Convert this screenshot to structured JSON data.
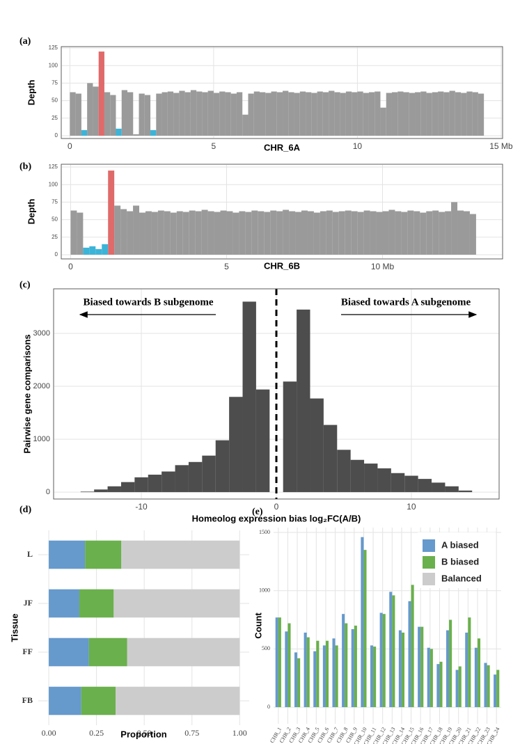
{
  "chart_data": [
    {
      "type": "bar",
      "label": "(a)",
      "x_label": "CHR_6A",
      "y_label": "Depth",
      "xlim": [
        -0.3,
        15.05
      ],
      "xticks": [
        0,
        5,
        10,
        {
          "value": 15,
          "label": "15 Mb"
        }
      ],
      "ylim": [
        -4,
        127
      ],
      "yticks": [
        0,
        25,
        50,
        75,
        100,
        125
      ],
      "grid": true,
      "x": [
        0.1,
        0.3,
        0.5,
        0.7,
        0.9,
        1.1,
        1.3,
        1.5,
        1.7,
        1.9,
        2.1,
        2.3,
        2.5,
        2.7,
        2.9,
        3.1,
        3.3,
        3.5,
        3.7,
        3.9,
        4.1,
        4.3,
        4.5,
        4.7,
        4.9,
        5.1,
        5.3,
        5.5,
        5.7,
        5.9,
        6.1,
        6.3,
        6.5,
        6.7,
        6.9,
        7.1,
        7.3,
        7.5,
        7.7,
        7.9,
        8.1,
        8.3,
        8.5,
        8.7,
        8.9,
        9.1,
        9.3,
        9.5,
        9.7,
        9.9,
        10.1,
        10.3,
        10.5,
        10.7,
        10.9,
        11.1,
        11.3,
        11.5,
        11.7,
        11.9,
        12.1,
        12.3,
        12.5,
        12.7,
        12.9,
        13.1,
        13.3,
        13.5,
        13.7,
        13.9,
        14.1,
        14.3
      ],
      "values": [
        62,
        60,
        8,
        75,
        70,
        120,
        62,
        58,
        10,
        65,
        62,
        2,
        60,
        58,
        8,
        60,
        62,
        63,
        61,
        64,
        62,
        65,
        63,
        62,
        64,
        61,
        63,
        62,
        60,
        62,
        30,
        60,
        63,
        62,
        61,
        63,
        62,
        64,
        62,
        61,
        63,
        62,
        61,
        63,
        62,
        64,
        62,
        61,
        63,
        62,
        63,
        61,
        62,
        63,
        40,
        61,
        62,
        63,
        62,
        61,
        62,
        63,
        61,
        62,
        63,
        62,
        64,
        62,
        61,
        63,
        62,
        60
      ],
      "colors": [
        "#9a9a9a",
        "#9a9a9a",
        "#3cb4d8",
        "#9a9a9a",
        "#9a9a9a",
        "#e06a6a",
        "#9a9a9a",
        "#9a9a9a",
        "#3cb4d8",
        "#9a9a9a",
        "#9a9a9a",
        "#9a9a9a",
        "#9a9a9a",
        "#9a9a9a",
        "#3cb4d8",
        "#9a9a9a",
        "#9a9a9a",
        "#9a9a9a",
        "#9a9a9a",
        "#9a9a9a",
        "#9a9a9a",
        "#9a9a9a",
        "#9a9a9a",
        "#9a9a9a",
        "#9a9a9a",
        "#9a9a9a",
        "#9a9a9a",
        "#9a9a9a",
        "#9a9a9a",
        "#9a9a9a",
        "#9a9a9a",
        "#9a9a9a",
        "#9a9a9a",
        "#9a9a9a",
        "#9a9a9a",
        "#9a9a9a",
        "#9a9a9a",
        "#9a9a9a",
        "#9a9a9a",
        "#9a9a9a",
        "#9a9a9a",
        "#9a9a9a",
        "#9a9a9a",
        "#9a9a9a",
        "#9a9a9a",
        "#9a9a9a",
        "#9a9a9a",
        "#9a9a9a",
        "#9a9a9a",
        "#9a9a9a",
        "#9a9a9a",
        "#9a9a9a",
        "#9a9a9a",
        "#9a9a9a",
        "#9a9a9a",
        "#9a9a9a",
        "#9a9a9a",
        "#9a9a9a",
        "#9a9a9a",
        "#9a9a9a",
        "#9a9a9a",
        "#9a9a9a",
        "#9a9a9a",
        "#9a9a9a",
        "#9a9a9a",
        "#9a9a9a",
        "#9a9a9a",
        "#9a9a9a",
        "#9a9a9a",
        "#9a9a9a",
        "#9a9a9a",
        "#9a9a9a"
      ]
    },
    {
      "type": "bar",
      "label": "(b)",
      "x_label": "CHR_6B",
      "y_label": "Depth",
      "xlim": [
        -0.3,
        13.85
      ],
      "xticks": [
        0,
        5,
        {
          "value": 10,
          "label": "10 Mb"
        }
      ],
      "ylim": [
        -6,
        129
      ],
      "yticks": [
        0,
        25,
        50,
        75,
        100,
        125
      ],
      "grid": true,
      "x": [
        0.1,
        0.3,
        0.5,
        0.7,
        0.9,
        1.1,
        1.3,
        1.5,
        1.7,
        1.9,
        2.1,
        2.3,
        2.5,
        2.7,
        2.9,
        3.1,
        3.3,
        3.5,
        3.7,
        3.9,
        4.1,
        4.3,
        4.5,
        4.7,
        4.9,
        5.1,
        5.3,
        5.5,
        5.7,
        5.9,
        6.1,
        6.3,
        6.5,
        6.7,
        6.9,
        7.1,
        7.3,
        7.5,
        7.7,
        7.9,
        8.1,
        8.3,
        8.5,
        8.7,
        8.9,
        9.1,
        9.3,
        9.5,
        9.7,
        9.9,
        10.1,
        10.3,
        10.5,
        10.7,
        10.9,
        11.1,
        11.3,
        11.5,
        11.7,
        11.9,
        12.1,
        12.3,
        12.5,
        12.7,
        12.9
      ],
      "values": [
        63,
        60,
        10,
        12,
        8,
        15,
        120,
        70,
        65,
        62,
        70,
        60,
        62,
        61,
        63,
        62,
        60,
        62,
        61,
        63,
        62,
        64,
        62,
        61,
        63,
        62,
        60,
        62,
        61,
        63,
        62,
        61,
        63,
        62,
        64,
        62,
        61,
        63,
        62,
        60,
        62,
        63,
        61,
        62,
        63,
        62,
        61,
        63,
        62,
        61,
        62,
        64,
        62,
        61,
        63,
        62,
        60,
        62,
        63,
        61,
        62,
        75,
        63,
        62,
        58
      ],
      "colors": [
        "#9a9a9a",
        "#9a9a9a",
        "#3cb4d8",
        "#3cb4d8",
        "#3cb4d8",
        "#3cb4d8",
        "#e06a6a",
        "#9a9a9a",
        "#9a9a9a",
        "#9a9a9a",
        "#9a9a9a",
        "#9a9a9a",
        "#9a9a9a",
        "#9a9a9a",
        "#9a9a9a",
        "#9a9a9a",
        "#9a9a9a",
        "#9a9a9a",
        "#9a9a9a",
        "#9a9a9a",
        "#9a9a9a",
        "#9a9a9a",
        "#9a9a9a",
        "#9a9a9a",
        "#9a9a9a",
        "#9a9a9a",
        "#9a9a9a",
        "#9a9a9a",
        "#9a9a9a",
        "#9a9a9a",
        "#9a9a9a",
        "#9a9a9a",
        "#9a9a9a",
        "#9a9a9a",
        "#9a9a9a",
        "#9a9a9a",
        "#9a9a9a",
        "#9a9a9a",
        "#9a9a9a",
        "#9a9a9a",
        "#9a9a9a",
        "#9a9a9a",
        "#9a9a9a",
        "#9a9a9a",
        "#9a9a9a",
        "#9a9a9a",
        "#9a9a9a",
        "#9a9a9a",
        "#9a9a9a",
        "#9a9a9a",
        "#9a9a9a",
        "#9a9a9a",
        "#9a9a9a",
        "#9a9a9a",
        "#9a9a9a",
        "#9a9a9a",
        "#9a9a9a",
        "#9a9a9a",
        "#9a9a9a",
        "#9a9a9a",
        "#9a9a9a",
        "#9a9a9a",
        "#9a9a9a",
        "#9a9a9a",
        "#9a9a9a"
      ]
    },
    {
      "type": "histogram",
      "label": "(c)",
      "x_label": "Homeolog expression bias log₂FC(A/B)",
      "y_label": "Pairwise gene comparisons",
      "annotations": [
        "Biased towards B subgenome",
        "Biased towards A subgenome"
      ],
      "vline": 0,
      "xlim": [
        -16.5,
        16.5
      ],
      "xticks": [
        -10,
        0,
        10
      ],
      "ylim": [
        -130,
        3842
      ],
      "yticks": [
        0,
        1000,
        2000,
        3000
      ],
      "grid": true,
      "color": "#4d4d4d",
      "bins": [
        -14.5,
        -13.5,
        -12.5,
        -11.5,
        -10.5,
        -9.5,
        -8.5,
        -7.5,
        -6.5,
        -5.5,
        -4.5,
        -3.5,
        -2.5,
        -1.5,
        -0.5,
        0.5,
        1.5,
        2.5,
        3.5,
        4.5,
        5.5,
        6.5,
        7.5,
        8.5,
        9.5,
        10.5,
        11.5,
        12.5,
        13.5,
        14.5
      ],
      "counts": [
        10,
        50,
        110,
        190,
        280,
        330,
        390,
        510,
        570,
        690,
        980,
        1800,
        3600,
        1940,
        0,
        2090,
        3450,
        1770,
        1270,
        800,
        610,
        540,
        450,
        360,
        310,
        250,
        180,
        110,
        30
      ]
    },
    {
      "type": "bar",
      "orientation": "horizontal",
      "stacked": true,
      "label": "(d)",
      "x_label": "Proportion",
      "y_label": "Tissue",
      "categories": [
        "L",
        "JF",
        "FF",
        "FB"
      ],
      "xlim": [
        -0.055,
        1.05
      ],
      "xticks": [
        {
          "value": 0,
          "label": "0.00"
        },
        {
          "value": 0.25,
          "label": "0.25"
        },
        {
          "value": 0.5,
          "label": "0.50"
        },
        {
          "value": 0.75,
          "label": "0.75"
        },
        {
          "value": 1,
          "label": "1.00"
        }
      ],
      "grid": true,
      "series": [
        {
          "name": "A biased",
          "color": "#6699cc",
          "values": [
            0.19,
            0.16,
            0.21,
            0.17
          ]
        },
        {
          "name": "B biased",
          "color": "#6ab04c",
          "values": [
            0.19,
            0.18,
            0.2,
            0.18
          ]
        },
        {
          "name": "Balanced",
          "color": "#cccccc",
          "values": [
            0.62,
            0.66,
            0.59,
            0.65
          ]
        }
      ]
    },
    {
      "type": "bar",
      "label": "(e)",
      "y_label": "Count",
      "categories": [
        "CHR_1",
        "CHR_2",
        "CHR_3",
        "CHR_4",
        "CHR_5",
        "CHR_6",
        "CHR_7",
        "CHR_8",
        "CHR_9",
        "CHR_10",
        "CHR_11",
        "CHR_12",
        "CHR_13",
        "CHR_14",
        "CHR_15",
        "CHR_16",
        "CHR_17",
        "CHR_18",
        "CHR_19",
        "CHR_20",
        "CHR_21",
        "CHR_22",
        "CHR_23",
        "CHR_24"
      ],
      "ylim": [
        -143,
        1542
      ],
      "yticks": [
        0,
        500,
        1000,
        1500
      ],
      "grid": true,
      "series": [
        {
          "color": "#6699cc",
          "values": [
            770,
            650,
            470,
            640,
            480,
            530,
            590,
            800,
            670,
            1460,
            530,
            810,
            990,
            660,
            910,
            690,
            510,
            370,
            660,
            320,
            640,
            510,
            380,
            280
          ]
        },
        {
          "color": "#6ab04c",
          "values": [
            770,
            720,
            420,
            600,
            570,
            570,
            530,
            720,
            700,
            1350,
            520,
            800,
            960,
            640,
            1050,
            690,
            500,
            390,
            750,
            350,
            770,
            590,
            360,
            320
          ]
        }
      ]
    }
  ]
}
